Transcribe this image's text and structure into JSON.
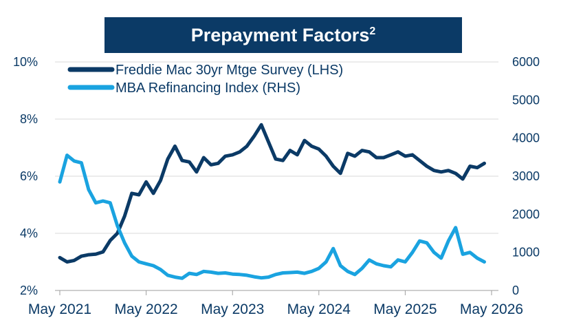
{
  "title": "Prepayment Factors",
  "title_sup": "2",
  "chart_data": {
    "type": "line",
    "title": "Prepayment Factors",
    "legend_position": "top-left",
    "grid": "horizontal",
    "x_ticks": [
      "May 2021",
      "May 2022",
      "May 2023",
      "May 2024",
      "May 2025",
      "May 2026"
    ],
    "x_range": [
      "2021-05",
      "2026-05"
    ],
    "y_left": {
      "ticks": [
        "2%",
        "4%",
        "6%",
        "8%",
        "10%"
      ],
      "range": [
        2,
        10
      ]
    },
    "y_right": {
      "ticks": [
        "0",
        "1000",
        "2000",
        "3000",
        "4000",
        "5000",
        "6000"
      ],
      "range": [
        0,
        6000
      ]
    },
    "series": [
      {
        "name": "Freddie Mac 30yr Mtge Survey (LHS)",
        "axis": "left",
        "color": "#0b3a66",
        "points": [
          [
            "2021-05",
            3.15
          ],
          [
            "2021-06",
            3.0
          ],
          [
            "2021-07",
            3.05
          ],
          [
            "2021-08",
            3.2
          ],
          [
            "2021-09",
            3.25
          ],
          [
            "2021-10",
            3.27
          ],
          [
            "2021-11",
            3.35
          ],
          [
            "2021-12",
            3.75
          ],
          [
            "2022-01",
            4.0
          ],
          [
            "2022-02",
            4.6
          ],
          [
            "2022-03",
            5.4
          ],
          [
            "2022-04",
            5.35
          ],
          [
            "2022-05",
            5.8
          ],
          [
            "2022-06",
            5.4
          ],
          [
            "2022-07",
            5.85
          ],
          [
            "2022-08",
            6.6
          ],
          [
            "2022-09",
            7.05
          ],
          [
            "2022-10",
            6.55
          ],
          [
            "2022-11",
            6.5
          ],
          [
            "2022-12",
            6.15
          ],
          [
            "2023-01",
            6.65
          ],
          [
            "2023-02",
            6.4
          ],
          [
            "2023-03",
            6.45
          ],
          [
            "2023-04",
            6.7
          ],
          [
            "2023-05",
            6.75
          ],
          [
            "2023-06",
            6.85
          ],
          [
            "2023-07",
            7.05
          ],
          [
            "2023-08",
            7.4
          ],
          [
            "2023-09",
            7.8
          ],
          [
            "2023-10",
            7.2
          ],
          [
            "2023-11",
            6.6
          ],
          [
            "2023-12",
            6.55
          ],
          [
            "2024-01",
            6.9
          ],
          [
            "2024-02",
            6.75
          ],
          [
            "2024-03",
            7.25
          ],
          [
            "2024-04",
            7.05
          ],
          [
            "2024-05",
            6.95
          ],
          [
            "2024-06",
            6.7
          ],
          [
            "2024-07",
            6.35
          ],
          [
            "2024-08",
            6.1
          ],
          [
            "2024-09",
            6.8
          ],
          [
            "2024-10",
            6.7
          ],
          [
            "2024-11",
            6.9
          ],
          [
            "2024-12",
            6.85
          ],
          [
            "2025-01",
            6.65
          ],
          [
            "2025-02",
            6.65
          ],
          [
            "2025-03",
            6.75
          ],
          [
            "2025-04",
            6.85
          ],
          [
            "2025-05",
            6.7
          ],
          [
            "2025-06",
            6.75
          ],
          [
            "2025-07",
            6.55
          ],
          [
            "2025-08",
            6.35
          ],
          [
            "2025-09",
            6.2
          ],
          [
            "2025-10",
            6.15
          ],
          [
            "2025-11",
            6.2
          ],
          [
            "2025-12",
            6.1
          ],
          [
            "2026-01",
            5.9
          ],
          [
            "2026-02",
            6.35
          ],
          [
            "2026-03",
            6.3
          ],
          [
            "2026-04",
            6.45
          ]
        ]
      },
      {
        "name": "MBA Refinancing Index (RHS)",
        "axis": "right",
        "color": "#1aa3e0",
        "points": [
          [
            "2021-05",
            2850
          ],
          [
            "2021-06",
            3550
          ],
          [
            "2021-07",
            3400
          ],
          [
            "2021-08",
            3350
          ],
          [
            "2021-09",
            2650
          ],
          [
            "2021-10",
            2300
          ],
          [
            "2021-11",
            2350
          ],
          [
            "2021-12",
            2300
          ],
          [
            "2022-01",
            1700
          ],
          [
            "2022-02",
            1250
          ],
          [
            "2022-03",
            900
          ],
          [
            "2022-04",
            750
          ],
          [
            "2022-05",
            700
          ],
          [
            "2022-06",
            650
          ],
          [
            "2022-07",
            550
          ],
          [
            "2022-08",
            400
          ],
          [
            "2022-09",
            350
          ],
          [
            "2022-10",
            320
          ],
          [
            "2022-11",
            450
          ],
          [
            "2022-12",
            420
          ],
          [
            "2023-01",
            500
          ],
          [
            "2023-02",
            480
          ],
          [
            "2023-03",
            450
          ],
          [
            "2023-04",
            460
          ],
          [
            "2023-05",
            430
          ],
          [
            "2023-06",
            420
          ],
          [
            "2023-07",
            400
          ],
          [
            "2023-08",
            360
          ],
          [
            "2023-09",
            330
          ],
          [
            "2023-10",
            350
          ],
          [
            "2023-11",
            420
          ],
          [
            "2023-12",
            460
          ],
          [
            "2024-01",
            470
          ],
          [
            "2024-02",
            480
          ],
          [
            "2024-03",
            450
          ],
          [
            "2024-04",
            500
          ],
          [
            "2024-05",
            580
          ],
          [
            "2024-06",
            750
          ],
          [
            "2024-07",
            1100
          ],
          [
            "2024-08",
            650
          ],
          [
            "2024-09",
            500
          ],
          [
            "2024-10",
            420
          ],
          [
            "2024-11",
            580
          ],
          [
            "2024-12",
            800
          ],
          [
            "2025-01",
            700
          ],
          [
            "2025-02",
            650
          ],
          [
            "2025-03",
            620
          ],
          [
            "2025-04",
            800
          ],
          [
            "2025-05",
            750
          ],
          [
            "2025-06",
            1000
          ],
          [
            "2025-07",
            1300
          ],
          [
            "2025-08",
            1250
          ],
          [
            "2025-09",
            1000
          ],
          [
            "2025-10",
            850
          ],
          [
            "2025-11",
            1300
          ],
          [
            "2025-12",
            1650
          ],
          [
            "2026-01",
            950
          ],
          [
            "2026-02",
            1000
          ],
          [
            "2026-03",
            850
          ],
          [
            "2026-04",
            750
          ]
        ]
      }
    ]
  }
}
